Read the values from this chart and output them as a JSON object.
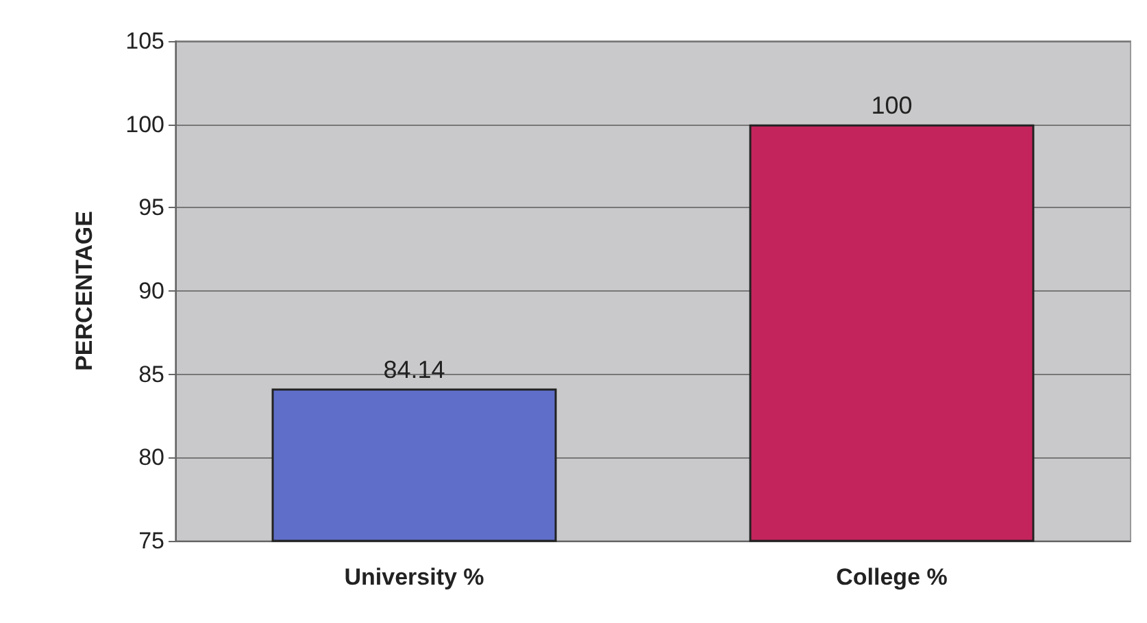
{
  "chart_data": {
    "type": "bar",
    "ylabel": "PERCENTAGE",
    "categories": [
      "University %",
      "College %"
    ],
    "values": [
      84.14,
      100
    ],
    "colors": [
      "#5f6fc9",
      "#c4245c"
    ],
    "ylim": [
      75,
      105
    ],
    "yticks": [
      75,
      80,
      85,
      90,
      95,
      100,
      105
    ],
    "grid": "y",
    "data_labels": true
  }
}
